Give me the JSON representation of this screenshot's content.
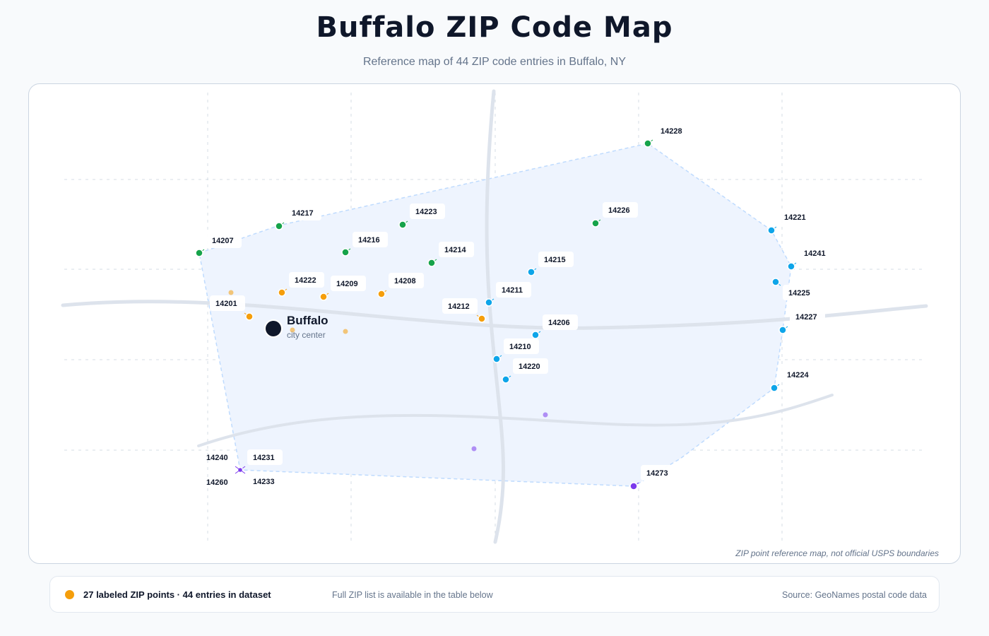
{
  "header": {
    "title": "Buffalo ZIP Code Map",
    "subtitle": "Reference map of 44 ZIP code entries in Buffalo, NY"
  },
  "map": {
    "disclaimer": "ZIP point reference map, not official USPS boundaries",
    "city": {
      "name": "Buffalo",
      "sublabel": "city center"
    },
    "colors": {
      "green": "#16a34a",
      "blue": "#0ea5e9",
      "orange": "#f59e0b",
      "purple": "#7c3aed",
      "coverage_fill": "#eef4fe",
      "coverage_stroke": "#bfdbfe",
      "road": "#dde3ec",
      "grid": "#cbd5e1",
      "city_marker": "#0f172a"
    },
    "labeled_points": [
      {
        "zip": "14201",
        "group": "orange"
      },
      {
        "zip": "14206",
        "group": "blue"
      },
      {
        "zip": "14207",
        "group": "green"
      },
      {
        "zip": "14208",
        "group": "orange"
      },
      {
        "zip": "14209",
        "group": "orange"
      },
      {
        "zip": "14210",
        "group": "blue"
      },
      {
        "zip": "14211",
        "group": "blue"
      },
      {
        "zip": "14212",
        "group": "orange"
      },
      {
        "zip": "14214",
        "group": "green"
      },
      {
        "zip": "14215",
        "group": "blue"
      },
      {
        "zip": "14216",
        "group": "green"
      },
      {
        "zip": "14217",
        "group": "green"
      },
      {
        "zip": "14220",
        "group": "blue"
      },
      {
        "zip": "14221",
        "group": "blue"
      },
      {
        "zip": "14222",
        "group": "orange"
      },
      {
        "zip": "14223",
        "group": "green"
      },
      {
        "zip": "14224",
        "group": "blue"
      },
      {
        "zip": "14225",
        "group": "blue"
      },
      {
        "zip": "14226",
        "group": "green"
      },
      {
        "zip": "14227",
        "group": "blue"
      },
      {
        "zip": "14228",
        "group": "green"
      },
      {
        "zip": "14241",
        "group": "blue"
      },
      {
        "zip": "14273",
        "group": "purple"
      },
      {
        "zip": "14231",
        "group": "purple"
      },
      {
        "zip": "14233",
        "group": "purple"
      },
      {
        "zip": "14240",
        "group": "purple"
      },
      {
        "zip": "14260",
        "group": "purple"
      }
    ]
  },
  "footer": {
    "legend_color": "#f59e0b",
    "legend_text": "27 labeled ZIP points · 44 entries in dataset",
    "table_note": "Full ZIP list is available in the table below",
    "source": "Source: GeoNames postal code data"
  }
}
